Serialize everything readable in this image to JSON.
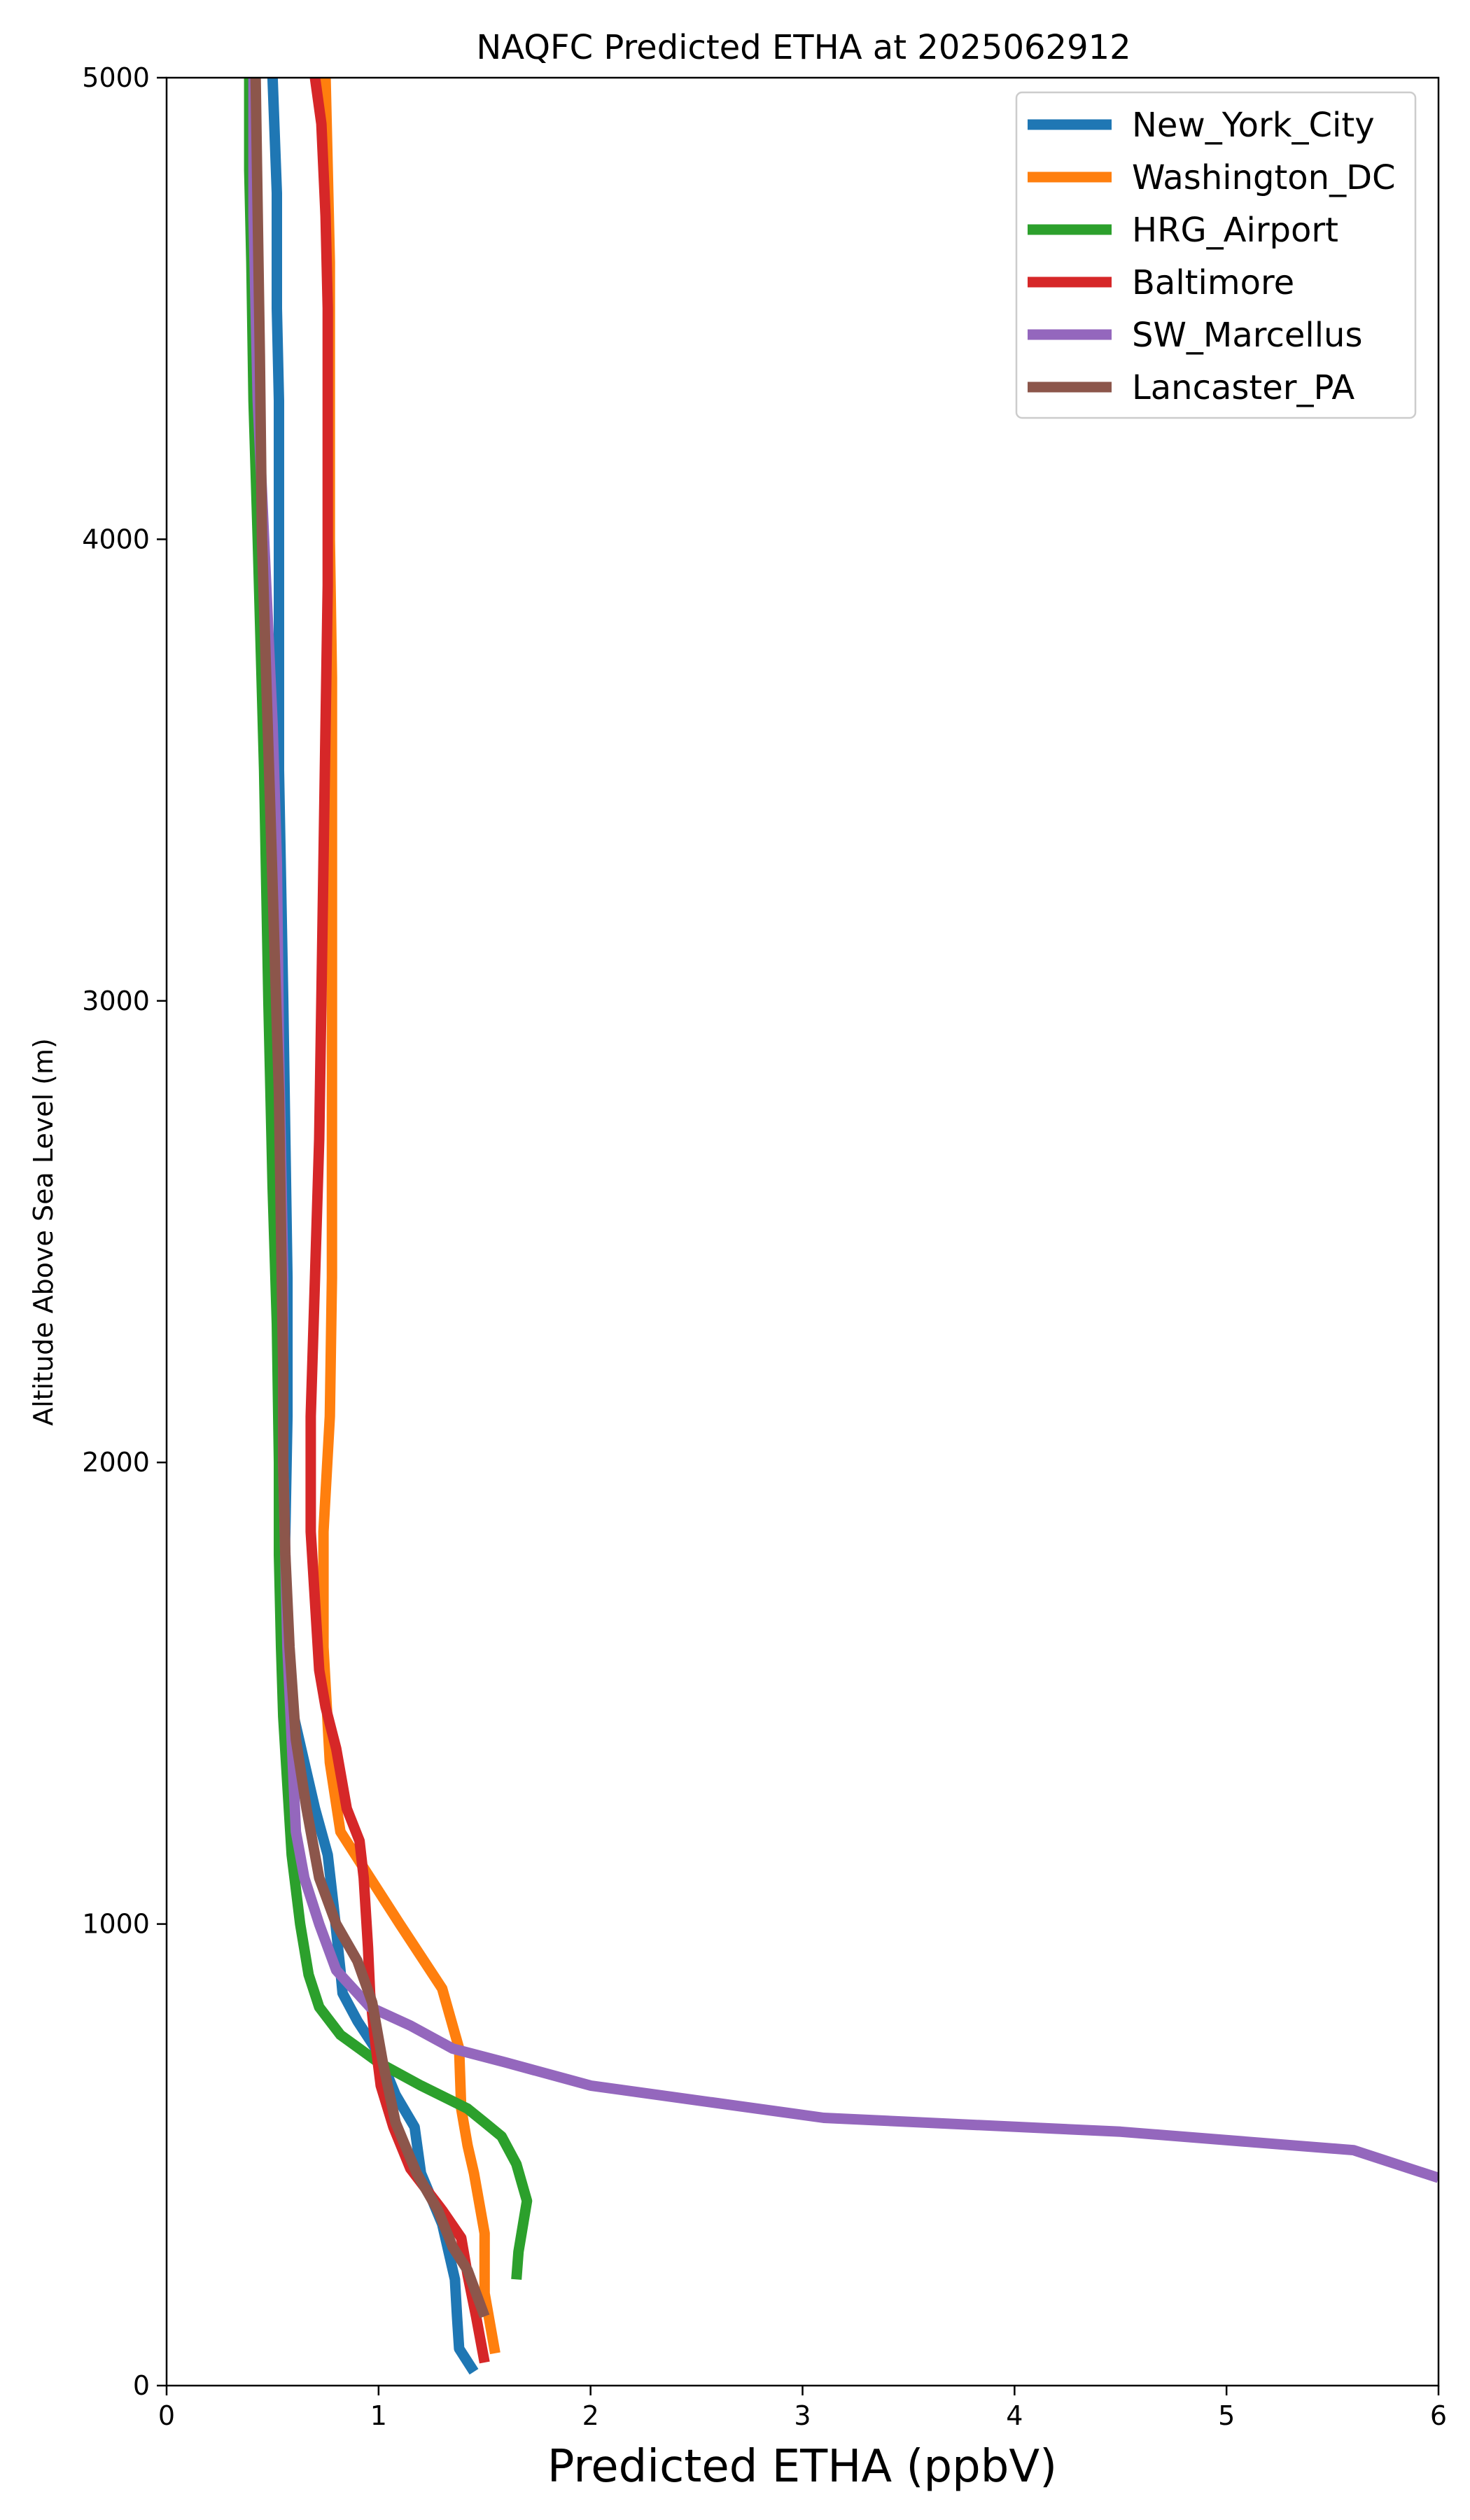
{
  "chart_data": {
    "type": "line",
    "title": "NAQFC Predicted ETHA at 2025062912",
    "xlabel": "Predicted ETHA (ppbV)",
    "ylabel": "Altitude Above Sea Level (m)",
    "xlim": [
      0,
      6
    ],
    "ylim": [
      0,
      5000
    ],
    "xticks": [
      "0",
      "1",
      "2",
      "3",
      "4",
      "5",
      "6"
    ],
    "yticks": [
      "0",
      "1000",
      "2000",
      "3000",
      "4000",
      "5000"
    ],
    "grid": false,
    "legend_position": "top-right",
    "series": [
      {
        "name": "New_York_City",
        "color": "#1f77b4",
        "x": [
          1.45,
          1.38,
          1.37,
          1.36,
          1.3,
          1.2,
          1.17,
          1.08,
          1.0,
          0.9,
          0.83,
          0.82,
          0.79,
          0.76,
          0.7,
          0.65,
          0.6,
          0.55,
          0.55,
          0.56,
          0.57,
          0.57,
          0.56,
          0.55,
          0.53,
          0.53,
          0.53,
          0.52,
          0.52,
          0.5
        ],
        "y": [
          30,
          80,
          150,
          230,
          350,
          460,
          560,
          630,
          720,
          790,
          850,
          900,
          1030,
          1150,
          1250,
          1350,
          1450,
          1550,
          1700,
          1850,
          2100,
          2400,
          2700,
          3000,
          3500,
          4000,
          4300,
          4500,
          4750,
          5000
        ]
      },
      {
        "name": "Washington_DC",
        "color": "#ff7f0e",
        "x": [
          1.55,
          1.5,
          1.5,
          1.45,
          1.42,
          1.39,
          1.38,
          1.3,
          1.1,
          0.82,
          0.77,
          0.74,
          0.74,
          0.77,
          0.78,
          0.78,
          0.78,
          0.78,
          0.78,
          0.77,
          0.77,
          0.77,
          0.76,
          0.75
        ],
        "y": [
          70,
          200,
          330,
          460,
          520,
          600,
          730,
          860,
          1000,
          1200,
          1350,
          1600,
          1850,
          2100,
          2400,
          2700,
          3000,
          3300,
          3700,
          4000,
          4400,
          4600,
          4800,
          5000
        ]
      },
      {
        "name": "HRG_Airport",
        "color": "#2ca02c",
        "x": [
          1.65,
          1.66,
          1.7,
          1.65,
          1.58,
          1.5,
          1.42,
          1.2,
          1.0,
          0.82,
          0.72,
          0.67,
          0.63,
          0.59,
          0.57,
          0.55,
          0.54,
          0.53,
          0.53,
          0.52,
          0.5,
          0.48,
          0.46,
          0.43,
          0.41,
          0.4,
          0.39,
          0.39
        ],
        "y": [
          230,
          290,
          400,
          480,
          540,
          570,
          600,
          650,
          700,
          760,
          820,
          890,
          1000,
          1150,
          1300,
          1450,
          1600,
          1800,
          2000,
          2300,
          2600,
          3000,
          3500,
          4000,
          4300,
          4600,
          4800,
          5000
        ]
      },
      {
        "name": "Baltimore",
        "color": "#d62728",
        "x": [
          1.5,
          1.46,
          1.42,
          1.39,
          1.3,
          1.15,
          1.07,
          1.01,
          0.98,
          0.96,
          0.95,
          0.93,
          0.91,
          0.85,
          0.8,
          0.75,
          0.72,
          0.68,
          0.68,
          0.7,
          0.72,
          0.73,
          0.74,
          0.75,
          0.76,
          0.76,
          0.76,
          0.75,
          0.73,
          0.7
        ],
        "y": [
          50,
          150,
          240,
          320,
          380,
          470,
          560,
          650,
          760,
          850,
          950,
          1100,
          1180,
          1250,
          1380,
          1470,
          1550,
          1850,
          2100,
          2400,
          2700,
          3000,
          3300,
          3600,
          3900,
          4300,
          4500,
          4700,
          4900,
          5000
        ]
      },
      {
        "name": "SW_Marcellus",
        "color": "#9467bd",
        "x": [
          6.0,
          5.6,
          4.5,
          3.1,
          2.0,
          1.6,
          1.35,
          1.15,
          0.96,
          0.8,
          0.72,
          0.65,
          0.61,
          0.59,
          0.57,
          0.56,
          0.55,
          0.55,
          0.53,
          0.52,
          0.5,
          0.47,
          0.45,
          0.43,
          0.42,
          0.41,
          0.41,
          0.41
        ],
        "y": [
          450,
          510,
          550,
          580,
          650,
          700,
          730,
          780,
          820,
          900,
          1000,
          1100,
          1200,
          1400,
          1600,
          1800,
          2000,
          2400,
          2900,
          3300,
          3600,
          3900,
          4100,
          4300,
          4500,
          4700,
          4900,
          5000
        ]
      },
      {
        "name": "Lancaster_PA",
        "color": "#8c564b",
        "x": [
          1.5,
          1.42,
          1.35,
          1.28,
          1.18,
          1.08,
          1.02,
          0.97,
          0.9,
          0.8,
          0.72,
          0.66,
          0.61,
          0.58,
          0.56,
          0.55,
          0.55,
          0.54,
          0.53,
          0.51,
          0.49,
          0.47,
          0.45,
          0.44,
          0.43,
          0.42
        ],
        "y": [
          150,
          250,
          300,
          380,
          460,
          570,
          700,
          830,
          920,
          1000,
          1100,
          1250,
          1400,
          1600,
          1800,
          2000,
          2200,
          2500,
          2800,
          3100,
          3400,
          3700,
          4000,
          4400,
          4700,
          5000
        ]
      }
    ]
  }
}
